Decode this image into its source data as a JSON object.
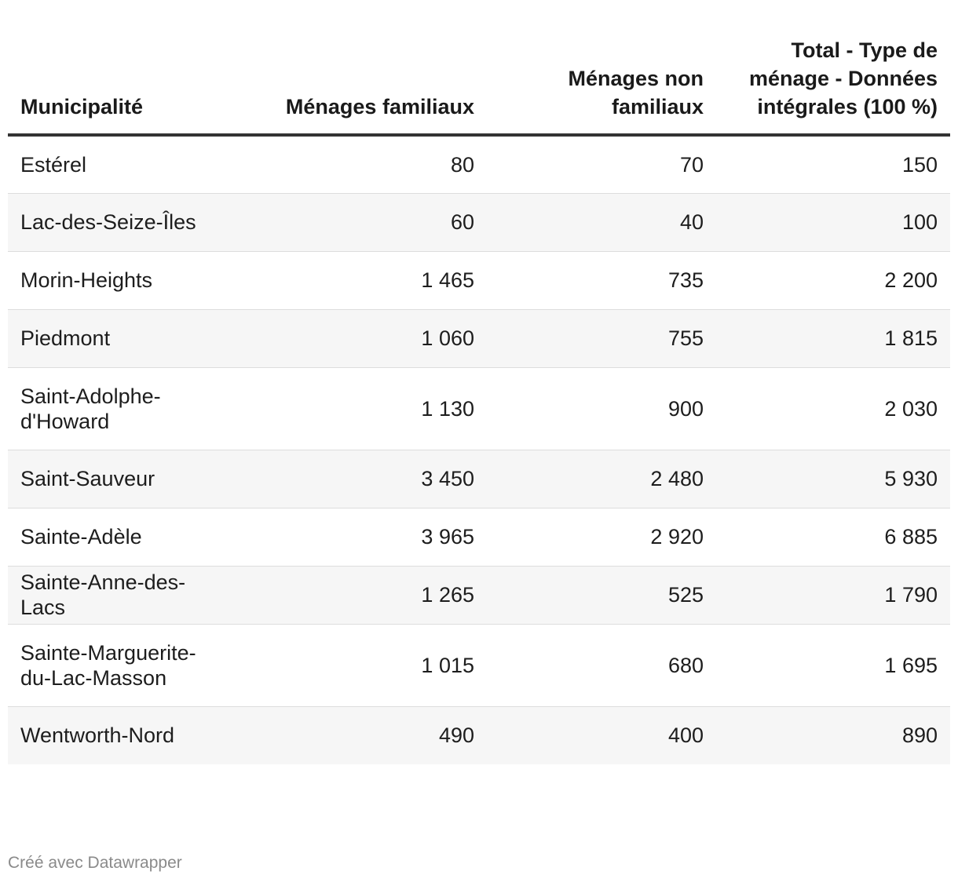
{
  "chart_data": {
    "type": "table",
    "columns": [
      "Municipalité",
      "Ménages familiaux",
      "Ménages non familiaux",
      "Total - Type de ménage - Données intégrales (100 %)"
    ],
    "rows": [
      {
        "municipality": "Estérel",
        "familiaux": "80",
        "non_familiaux": "70",
        "total": "150"
      },
      {
        "municipality": "Lac-des-Seize-Îles",
        "familiaux": "60",
        "non_familiaux": "40",
        "total": "100"
      },
      {
        "municipality": "Morin-Heights",
        "familiaux": "1 465",
        "non_familiaux": "735",
        "total": "2 200"
      },
      {
        "municipality": "Piedmont",
        "familiaux": "1 060",
        "non_familiaux": "755",
        "total": "1 815"
      },
      {
        "municipality": "Saint-Adolphe-d'Howard",
        "familiaux": "1 130",
        "non_familiaux": "900",
        "total": "2 030"
      },
      {
        "municipality": "Saint-Sauveur",
        "familiaux": "3 450",
        "non_familiaux": "2 480",
        "total": "5 930"
      },
      {
        "municipality": "Sainte-Adèle",
        "familiaux": "3 965",
        "non_familiaux": "2 920",
        "total": "6 885"
      },
      {
        "municipality": "Sainte-Anne-des-Lacs",
        "familiaux": "1 265",
        "non_familiaux": "525",
        "total": "1 790"
      },
      {
        "municipality": "Sainte-Marguerite-du-Lac-Masson",
        "familiaux": "1 015",
        "non_familiaux": "680",
        "total": "1 695"
      },
      {
        "municipality": "Wentworth-Nord",
        "familiaux": "490",
        "non_familiaux": "400",
        "total": "890"
      }
    ]
  },
  "footer": {
    "credit": "Créé avec Datawrapper"
  }
}
